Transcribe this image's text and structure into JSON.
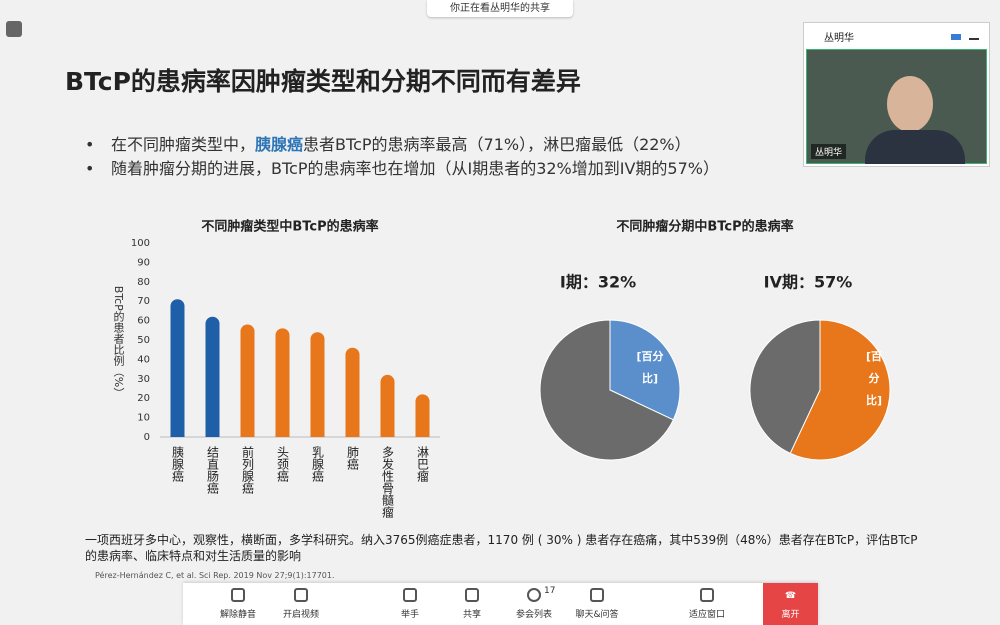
{
  "meeting": {
    "share_banner": "你正在看丛明华的共享",
    "presenter": "丛明华",
    "participants": 17,
    "toolbar": [
      "解除静音",
      "开启视频",
      "举手",
      "共享",
      "参会列表",
      "聊天&问答",
      "适应窗口",
      "离开"
    ]
  },
  "slide": {
    "title": "BTcP的患病率因肿瘤类型和分期不同而有差异",
    "bullets": [
      [
        "在不同肿瘤类型中，",
        "胰腺癌",
        "患者BTcP的患病率最高（71%），淋巴瘤最低（22%）"
      ],
      [
        "随着肿瘤分期的进展，BTcP的患病率也在增加（从I期患者的32%增加到IV期的57%）"
      ]
    ],
    "pie_section_title": "不同肿瘤分期中BTcP的患病率",
    "note": "一项西班牙多中心，观察性，横断面，多学科研究。纳入3765例癌症患者，1170 例 ( 30% ) 患者存在癌痛，其中539例（48%）患者存在BTcP，评估BTcP的患病率、临床特点和对生活质量的影响",
    "citation": "Pérez-Hernández C, et al. Sci Rep. 2019 Nov 27;9(1):17701."
  },
  "chart_data": [
    {
      "type": "bar",
      "title": "不同肿瘤类型中BTcP的患病率",
      "y_label": "BTcP的患者比例（%）",
      "categories": [
        "胰腺癌",
        "结直肠癌",
        "前列腺癌",
        "头颈癌",
        "乳腺癌",
        "肺癌",
        "多发性骨髓瘤",
        "淋巴瘤"
      ],
      "values": [
        71,
        62,
        58,
        56,
        54,
        46,
        32,
        22
      ],
      "colors": [
        "#1f5fa8",
        "#1f5fa8",
        "#e8761a",
        "#e8761a",
        "#e8761a",
        "#e8761a",
        "#e8761a",
        "#e8761a"
      ],
      "ylim": [
        0,
        100
      ],
      "yticks": [
        0,
        10,
        20,
        30,
        40,
        50,
        60,
        70,
        80,
        90,
        100
      ]
    },
    {
      "type": "pie",
      "title": "I期：32%",
      "values": [
        32,
        68
      ],
      "colors": [
        "#5b8fcc",
        "#6b6b6b"
      ],
      "annotation": "[百分比]"
    },
    {
      "type": "pie",
      "title": "IV期：57%",
      "values": [
        57,
        43
      ],
      "colors": [
        "#e8761a",
        "#6b6b6b"
      ],
      "annotation": "[百分比]"
    }
  ]
}
